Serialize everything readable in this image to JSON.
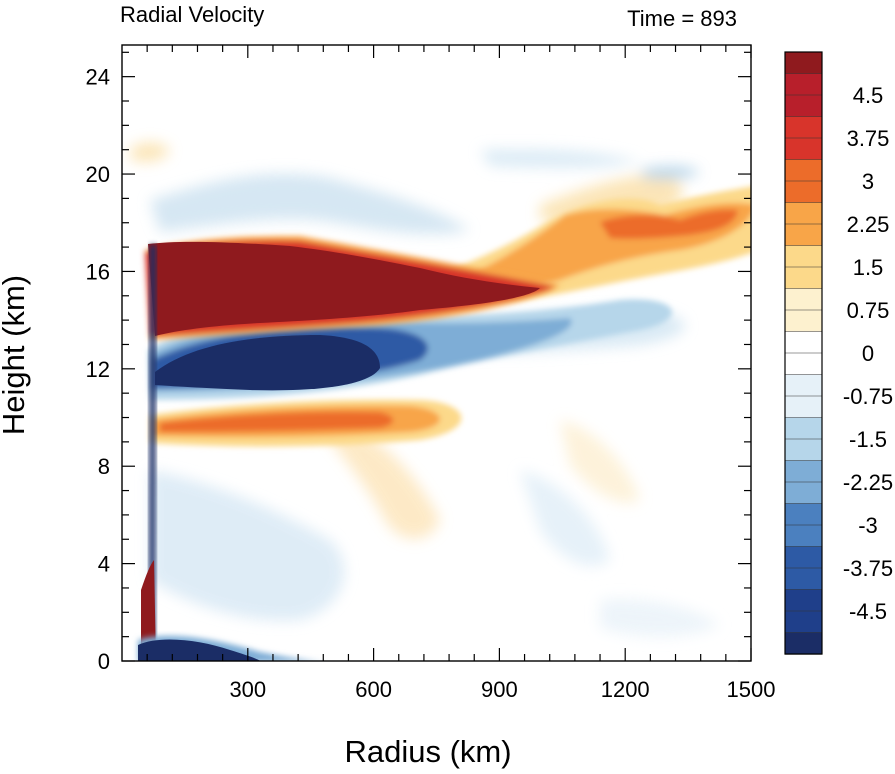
{
  "chart_data": {
    "type": "heatmap",
    "title": "Radial Velocity",
    "subtitle": "Time = 893",
    "xlabel": "Radius (km)",
    "ylabel": "Height (km)",
    "xlim": [
      0,
      1500
    ],
    "ylim": [
      0,
      25.3
    ],
    "x_ticks": [
      300,
      600,
      900,
      1200,
      1500
    ],
    "y_ticks": [
      0,
      4,
      8,
      12,
      16,
      20,
      24
    ],
    "colorbar": {
      "labels": [
        "4.5",
        "3.75",
        "3",
        "2.25",
        "1.5",
        "0.75",
        "0",
        "-0.75",
        "-1.5",
        "-2.25",
        "-3",
        "-3.75",
        "-4.5"
      ],
      "label_values": [
        4.5,
        3.75,
        3,
        2.25,
        1.5,
        0.75,
        0,
        -0.75,
        -1.5,
        -2.25,
        -3,
        -3.75,
        -4.5
      ],
      "range": [
        -5.25,
        5.25
      ],
      "colors": [
        "#1b2d66",
        "#1f3f8a",
        "#2d5aa5",
        "#4b80bf",
        "#7eadd6",
        "#b6d6ea",
        "#e6f1f8",
        "#ffffff",
        "#fdf1cf",
        "#fcd98a",
        "#f8a548",
        "#ec6c2a",
        "#d8342b",
        "#b81f2b",
        "#8f1a1e"
      ]
    },
    "features": [
      {
        "name": "upper outflow",
        "r_range": [
          70,
          1050
        ],
        "z_range": [
          14.2,
          17.2
        ],
        "value": 5.25
      },
      {
        "name": "outflow extension",
        "r_range": [
          700,
          1400
        ],
        "z_range": [
          15.5,
          19.5
        ],
        "value": 2.5
      },
      {
        "name": "upper inflow",
        "r_range": [
          90,
          620
        ],
        "z_range": [
          11,
          13.6
        ],
        "value": -5.25
      },
      {
        "name": "mid-level outflow",
        "r_range": [
          90,
          780
        ],
        "z_range": [
          9.2,
          10.6
        ],
        "value": 2.6
      },
      {
        "name": "boundary layer inflow",
        "r_range": [
          50,
          300
        ],
        "z_range": [
          0,
          1.2
        ],
        "value": -5.25
      },
      {
        "name": "eyewall outflow",
        "r_range": [
          40,
          80
        ],
        "z_range": [
          1,
          4
        ],
        "value": 5.25
      }
    ]
  }
}
